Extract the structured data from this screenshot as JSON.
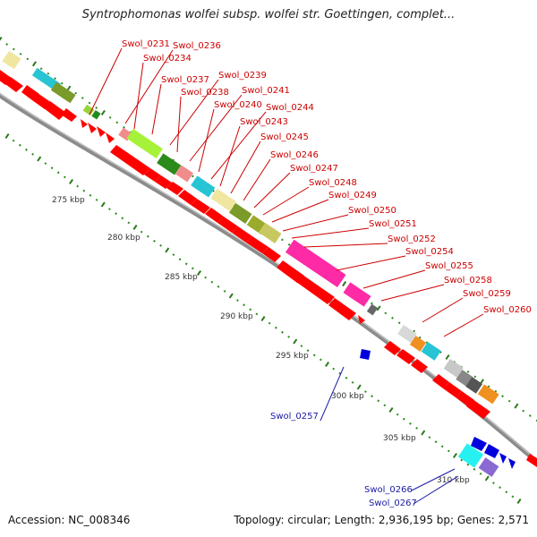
{
  "title": "Syntrophomonas wolfei subsp. wolfei str. Goettingen, complet...",
  "accession_text": "Accession: NC_008346",
  "summary_text": "Topology: circular; Length: 2,936,195 bp; Genes: 2,571",
  "colors": {
    "backbone": "#8c8c8c",
    "forward_label": "#cc0000",
    "reverse_label": "#1a1aa6",
    "tick_major": "#2a7a1a",
    "tick_minor": "#2a8a1a",
    "cds": "#ff0000",
    "reverse_cds": "#0000dd"
  },
  "ruler_labels": [
    "275 kbp",
    "280 kbp",
    "285 kbp",
    "290 kbp",
    "295 kbp",
    "300 kbp",
    "305 kbp",
    "310 kbp"
  ],
  "gene_labels_forward": [
    "Swol_0231",
    "Swol_0236",
    "Swol_0234",
    "Swol_0237",
    "Swol_0239",
    "Swol_0238",
    "Swol_0241",
    "Swol_0240",
    "Swol_0244",
    "Swol_0243",
    "Swol_0245",
    "Swol_0246",
    "Swol_0247",
    "Swol_0248",
    "Swol_0249",
    "Swol_0250",
    "Swol_0251",
    "Swol_0252",
    "Swol_0254",
    "Swol_0255",
    "Swol_0258",
    "Swol_0259",
    "Swol_0260"
  ],
  "gene_labels_reverse": [
    "Swol_0257",
    "Swol_0266",
    "Swol_0267"
  ]
}
